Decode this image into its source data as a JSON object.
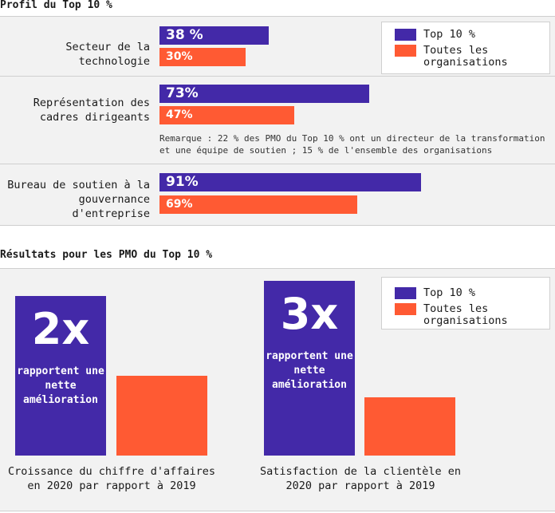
{
  "colors": {
    "top10": "#4329a8",
    "all": "#ff5a33",
    "panel_bg": "#f2f2f2"
  },
  "profile": {
    "title": "Profil du Top 10 %",
    "legend": {
      "top10": "Top 10 %",
      "all": "Toutes les organisations"
    },
    "note": "Remarque : 22 % des PMO du Top 10 % ont un directeur de la transformation et une équipe de soutien ; 15 % de l'ensemble des organisations",
    "chart_data": {
      "type": "bar",
      "orientation": "horizontal",
      "categories": [
        "Secteur de la technologie",
        "Représentation des cadres dirigeants",
        "Bureau de soutien à la gouvernance d'entreprise"
      ],
      "series": [
        {
          "name": "Top 10 %",
          "values": [
            38,
            73,
            91
          ],
          "labels": [
            "38 %",
            "73%",
            "91%"
          ]
        },
        {
          "name": "Toutes les organisations",
          "values": [
            30,
            47,
            69
          ],
          "labels": [
            "30%",
            "47%",
            "69%"
          ]
        }
      ],
      "unit": "%"
    }
  },
  "results": {
    "title": "Résultats pour les PMO du Top 10 %",
    "legend": {
      "top10": "Top 10 %",
      "all": "Toutes les organisations"
    },
    "chart_data": {
      "type": "bar",
      "categories": [
        "Croissance du chiffre d'affaires en 2020 par rapport à 2019",
        "Satisfaction de la clientèle en 2020 par rapport à 2019"
      ],
      "series": [
        {
          "name": "Top 10 %",
          "values": [
            2,
            3
          ],
          "labels": [
            "2x",
            "3x"
          ],
          "descriptions": [
            "rapportent une nette amélioration",
            "rapportent une nette amélioration"
          ]
        },
        {
          "name": "Toutes les organisations",
          "values": [
            1,
            1
          ]
        }
      ]
    }
  }
}
